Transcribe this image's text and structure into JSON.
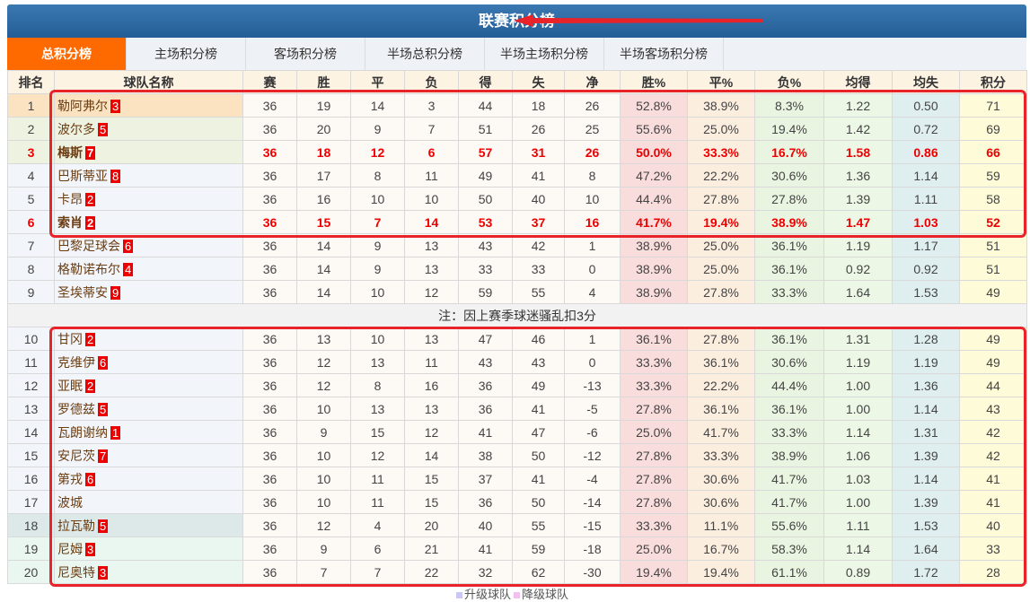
{
  "title": "联赛积分榜",
  "tabs": [
    "总积分榜",
    "主场积分榜",
    "客场积分榜",
    "半场总积分榜",
    "半场主场积分榜",
    "半场客场积分榜"
  ],
  "headers": [
    "排名",
    "球队名称",
    "赛",
    "胜",
    "平",
    "负",
    "得",
    "失",
    "净",
    "胜%",
    "平%",
    "负%",
    "均得",
    "均失",
    "积分"
  ],
  "note": "注：因上赛季球迷骚乱扣3分",
  "legend": {
    "promote": "升级球队",
    "relegate": "降级球队",
    "promote_color": "#c8c8f0",
    "relegate_color": "#f0c0f0"
  },
  "colors": {
    "header_bar": "#2f6ba5",
    "active_tab": "#ff6a00",
    "highlight_box": "#e8232a",
    "badge": "#ee0000"
  },
  "rows": [
    [
      "1",
      "勒阿弗尔",
      "3",
      "36",
      "19",
      "14",
      "3",
      "44",
      "18",
      "26",
      "52.8%",
      "38.9%",
      "8.3%",
      "1.22",
      "0.50",
      "71"
    ],
    [
      "2",
      "波尔多",
      "5",
      "36",
      "20",
      "9",
      "7",
      "51",
      "26",
      "25",
      "55.6%",
      "25.0%",
      "19.4%",
      "1.42",
      "0.72",
      "69"
    ],
    [
      "3",
      "梅斯",
      "7",
      "36",
      "18",
      "12",
      "6",
      "57",
      "31",
      "26",
      "50.0%",
      "33.3%",
      "16.7%",
      "1.58",
      "0.86",
      "66"
    ],
    [
      "4",
      "巴斯蒂亚",
      "8",
      "36",
      "17",
      "8",
      "11",
      "49",
      "41",
      "8",
      "47.2%",
      "22.2%",
      "30.6%",
      "1.36",
      "1.14",
      "59"
    ],
    [
      "5",
      "卡昂",
      "2",
      "36",
      "16",
      "10",
      "10",
      "50",
      "40",
      "10",
      "44.4%",
      "27.8%",
      "27.8%",
      "1.39",
      "1.11",
      "58"
    ],
    [
      "6",
      "索肖",
      "2",
      "36",
      "15",
      "7",
      "14",
      "53",
      "37",
      "16",
      "41.7%",
      "19.4%",
      "38.9%",
      "1.47",
      "1.03",
      "52"
    ],
    [
      "7",
      "巴黎足球会",
      "6",
      "36",
      "14",
      "9",
      "13",
      "43",
      "42",
      "1",
      "38.9%",
      "25.0%",
      "36.1%",
      "1.19",
      "1.17",
      "51"
    ],
    [
      "8",
      "格勒诺布尔",
      "4",
      "36",
      "14",
      "9",
      "13",
      "33",
      "33",
      "0",
      "38.9%",
      "25.0%",
      "36.1%",
      "0.92",
      "0.92",
      "51"
    ],
    [
      "9",
      "圣埃蒂安",
      "9",
      "36",
      "14",
      "10",
      "12",
      "59",
      "55",
      "4",
      "38.9%",
      "27.8%",
      "33.3%",
      "1.64",
      "1.53",
      "49"
    ],
    [
      "10",
      "甘冈",
      "2",
      "36",
      "13",
      "10",
      "13",
      "47",
      "46",
      "1",
      "36.1%",
      "27.8%",
      "36.1%",
      "1.31",
      "1.28",
      "49"
    ],
    [
      "11",
      "克维伊",
      "6",
      "36",
      "12",
      "13",
      "11",
      "43",
      "43",
      "0",
      "33.3%",
      "36.1%",
      "30.6%",
      "1.19",
      "1.19",
      "49"
    ],
    [
      "12",
      "亚眠",
      "2",
      "36",
      "12",
      "8",
      "16",
      "36",
      "49",
      "-13",
      "33.3%",
      "22.2%",
      "44.4%",
      "1.00",
      "1.36",
      "44"
    ],
    [
      "13",
      "罗德兹",
      "5",
      "36",
      "10",
      "13",
      "13",
      "36",
      "41",
      "-5",
      "27.8%",
      "36.1%",
      "36.1%",
      "1.00",
      "1.14",
      "43"
    ],
    [
      "14",
      "瓦朗谢纳",
      "1",
      "36",
      "9",
      "15",
      "12",
      "41",
      "47",
      "-6",
      "25.0%",
      "41.7%",
      "33.3%",
      "1.14",
      "1.31",
      "42"
    ],
    [
      "15",
      "安尼茨",
      "7",
      "36",
      "10",
      "12",
      "14",
      "38",
      "50",
      "-12",
      "27.8%",
      "33.3%",
      "38.9%",
      "1.06",
      "1.39",
      "42"
    ],
    [
      "16",
      "第戎",
      "6",
      "36",
      "10",
      "11",
      "15",
      "37",
      "41",
      "-4",
      "27.8%",
      "30.6%",
      "41.7%",
      "1.03",
      "1.14",
      "41"
    ],
    [
      "17",
      "波城",
      "",
      "36",
      "10",
      "11",
      "15",
      "36",
      "50",
      "-14",
      "27.8%",
      "30.6%",
      "41.7%",
      "1.00",
      "1.39",
      "41"
    ],
    [
      "18",
      "拉瓦勒",
      "5",
      "36",
      "12",
      "4",
      "20",
      "40",
      "55",
      "-15",
      "33.3%",
      "11.1%",
      "55.6%",
      "1.11",
      "1.53",
      "40"
    ],
    [
      "19",
      "尼姆",
      "3",
      "36",
      "9",
      "6",
      "21",
      "41",
      "59",
      "-18",
      "25.0%",
      "16.7%",
      "58.3%",
      "1.14",
      "1.64",
      "33"
    ],
    [
      "20",
      "尼奥特",
      "3",
      "36",
      "7",
      "7",
      "22",
      "32",
      "62",
      "-30",
      "19.4%",
      "19.4%",
      "61.1%",
      "0.89",
      "1.72",
      "28"
    ]
  ]
}
